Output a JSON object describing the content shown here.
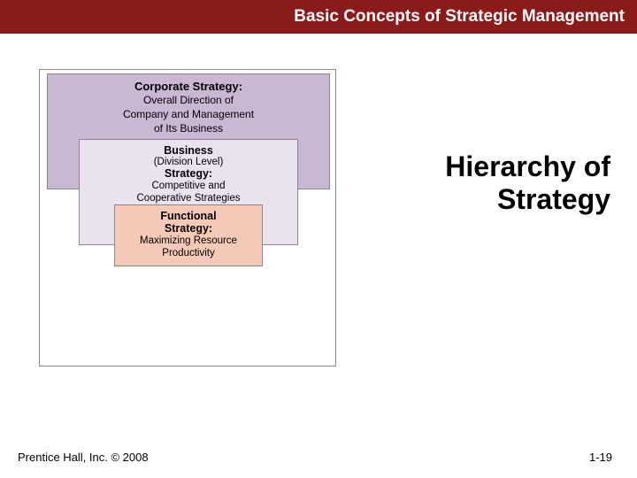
{
  "header": {
    "title": "Basic Concepts of Strategic Management",
    "bg_color": "#8b1a1a",
    "text_color": "#ffffff"
  },
  "slide_title": {
    "line1": "Hierarchy of",
    "line2": "Strategy",
    "fontsize": 32
  },
  "diagram": {
    "type": "infographic",
    "layout": "nested-boxes",
    "frame_bg": "#ffffff",
    "frame_border": "#888888",
    "corporate": {
      "title": "Corporate Strategy:",
      "desc_line1": "Overall Direction of",
      "desc_line2": "Company and Management",
      "desc_line3": "of Its Business",
      "bg_color": "#c9b7d4",
      "border_color": "#888888",
      "title_fontsize": 13,
      "desc_fontsize": 12
    },
    "business": {
      "title": "Business",
      "sub": "(Division Level)",
      "sub2": "Strategy:",
      "desc_line1": "Competitive and",
      "desc_line2": "Cooperative Strategies",
      "bg_color": "#eae3ef",
      "border_color": "#888888",
      "title_fontsize": 12.5,
      "desc_fontsize": 11.5
    },
    "functional": {
      "title": "Functional",
      "sub": "Strategy:",
      "desc_line1": "Maximizing Resource",
      "desc_line2": "Productivity",
      "bg_color": "#f4c9b8",
      "border_color": "#888888",
      "title_fontsize": 12.5,
      "desc_fontsize": 11.5
    }
  },
  "footer": {
    "left": "Prentice Hall, Inc. ©  2008",
    "right": "1-19",
    "fontsize": 13
  }
}
